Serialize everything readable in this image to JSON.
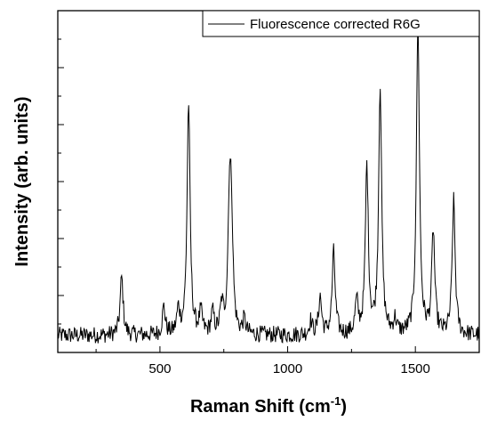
{
  "chart_data": {
    "type": "line",
    "xlabel": "Raman Shift (cm",
    "xlabel_sup": "-1",
    "xlabel_close": ")",
    "ylabel": "Intensity (arb. units)",
    "xlim": [
      100,
      1750
    ],
    "ylim": [
      0,
      100
    ],
    "x_ticks": [
      500,
      1000,
      1500
    ],
    "x_tick_labels": [
      "500",
      "1000",
      "1500"
    ],
    "y_tick_labels_shown": false,
    "grid": false,
    "legend": "top-right",
    "series": [
      {
        "name": "Fluorescence corrected R6G",
        "color": "#000000",
        "peaks": [
          {
            "x": 350,
            "h": 17
          },
          {
            "x": 515,
            "h": 8
          },
          {
            "x": 572,
            "h": 7
          },
          {
            "x": 612,
            "h": 68
          },
          {
            "x": 660,
            "h": 6
          },
          {
            "x": 706,
            "h": 6
          },
          {
            "x": 742,
            "h": 8
          },
          {
            "x": 772,
            "h": 36
          },
          {
            "x": 780,
            "h": 30
          },
          {
            "x": 830,
            "h": 4
          },
          {
            "x": 1090,
            "h": 4
          },
          {
            "x": 1127,
            "h": 11
          },
          {
            "x": 1180,
            "h": 24
          },
          {
            "x": 1270,
            "h": 9
          },
          {
            "x": 1310,
            "h": 49
          },
          {
            "x": 1362,
            "h": 73
          },
          {
            "x": 1420,
            "h": 4
          },
          {
            "x": 1510,
            "h": 92
          },
          {
            "x": 1570,
            "h": 30
          },
          {
            "x": 1650,
            "h": 39
          }
        ],
        "baseline": 5
      }
    ]
  }
}
